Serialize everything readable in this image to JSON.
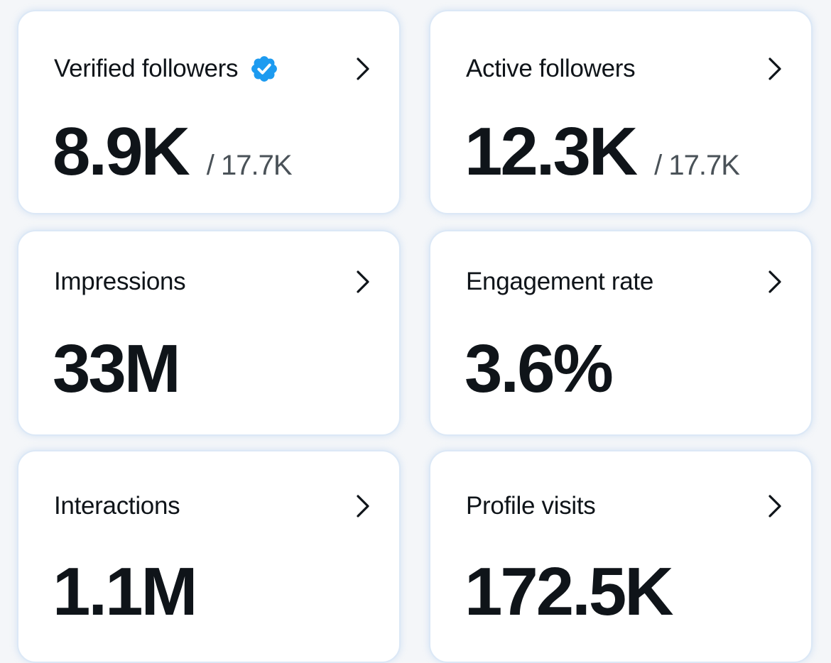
{
  "cards": [
    {
      "label": "Verified followers",
      "value": "8.9K",
      "total": "/ 17.7K",
      "icon": "verified-badge-icon",
      "badge_color": "#1d9bf0"
    },
    {
      "label": "Active followers",
      "value": "12.3K",
      "total": "/ 17.7K"
    },
    {
      "label": "Impressions",
      "value": "33M"
    },
    {
      "label": "Engagement rate",
      "value": "3.6%"
    },
    {
      "label": "Interactions",
      "value": "1.1M"
    },
    {
      "label": "Profile visits",
      "value": "172.5K"
    }
  ],
  "colors": {
    "text": "#0f1419",
    "secondary_text": "#4a5258",
    "card_border": "#dce8f6",
    "verified_badge": "#1d9bf0"
  }
}
